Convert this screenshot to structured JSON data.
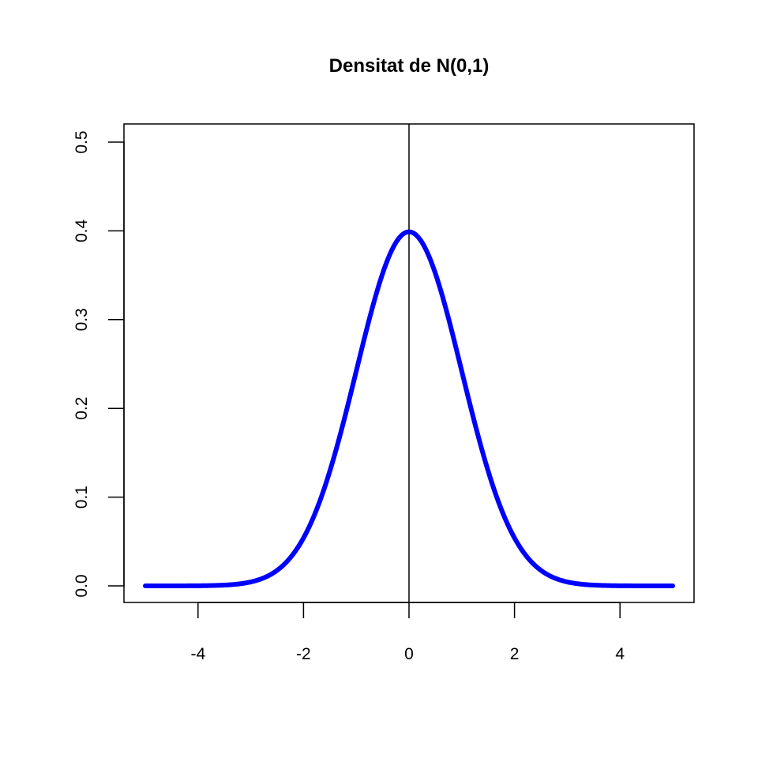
{
  "chart_data": {
    "type": "line",
    "title": "Densitat de N(0,1)",
    "xlabel": "",
    "ylabel": "",
    "xlim": [
      -5,
      5
    ],
    "ylim": [
      0,
      0.5
    ],
    "x_ticks": [
      -4,
      -2,
      0,
      2,
      4
    ],
    "x_tick_labels": [
      "-4",
      "-2",
      "0",
      "2",
      "4"
    ],
    "y_ticks": [
      0.0,
      0.1,
      0.2,
      0.3,
      0.4,
      0.5
    ],
    "y_tick_labels": [
      "0.0",
      "0.1",
      "0.2",
      "0.3",
      "0.4",
      "0.5"
    ],
    "grid": false,
    "vertical_reference_line": {
      "x": 0
    },
    "series": [
      {
        "color": "#0000ff",
        "x": [
          -5,
          -4.5,
          -4,
          -3.5,
          -3,
          -2.5,
          -2,
          -1.5,
          -1,
          -0.5,
          0,
          0.5,
          1,
          1.5,
          2,
          2.5,
          3,
          3.5,
          4,
          4.5,
          5
        ],
        "values": [
          1.5e-06,
          1.6e-05,
          0.000134,
          0.000873,
          0.004432,
          0.017528,
          0.053991,
          0.129518,
          0.241971,
          0.352065,
          0.398942,
          0.352065,
          0.241971,
          0.129518,
          0.053991,
          0.017528,
          0.004432,
          0.000873,
          0.000134,
          1.6e-05,
          1.5e-06
        ]
      }
    ]
  }
}
